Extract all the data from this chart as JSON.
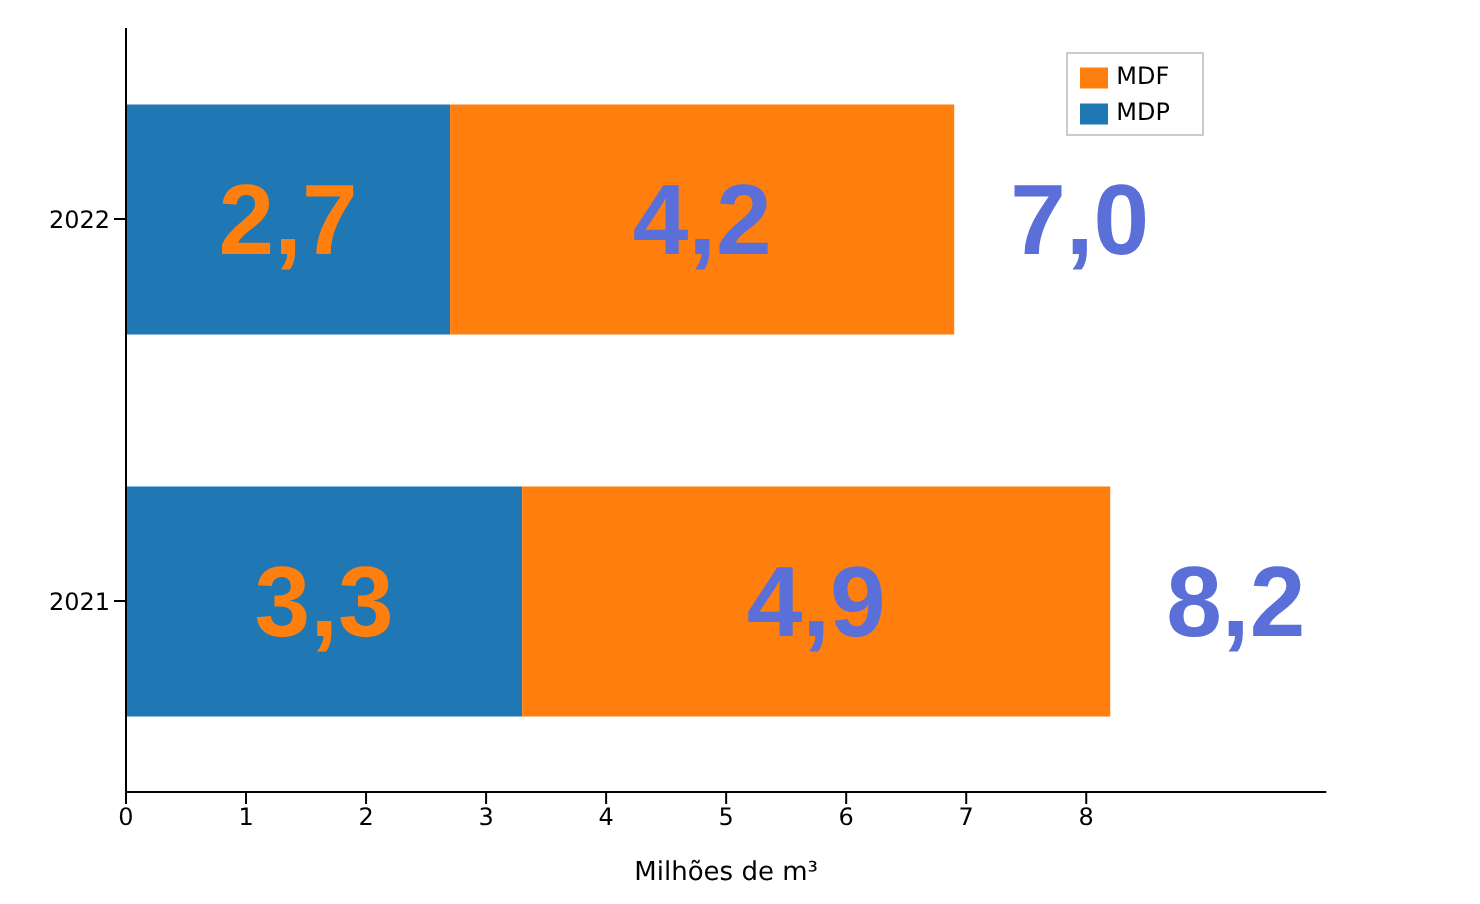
{
  "chart_data": {
    "type": "bar",
    "orientation": "horizontal",
    "stacked": true,
    "xlabel": "Milhões de m³",
    "categories": [
      "2022",
      "2021"
    ],
    "series": [
      {
        "name": "MDP",
        "color": "#1f77b4",
        "values": [
          2.7,
          3.3
        ],
        "value_labels": [
          "2,7",
          "3,3"
        ]
      },
      {
        "name": "MDF",
        "color": "#ff7f0e",
        "values": [
          4.2,
          4.9
        ],
        "value_labels": [
          "4,2",
          "4,9"
        ]
      }
    ],
    "totals": [
      "7,0",
      "8,2"
    ],
    "xlim": [
      0,
      10
    ],
    "xticks": [
      0,
      1,
      2,
      3,
      4,
      5,
      6,
      7,
      8
    ],
    "grid": false,
    "legend": "top right"
  }
}
